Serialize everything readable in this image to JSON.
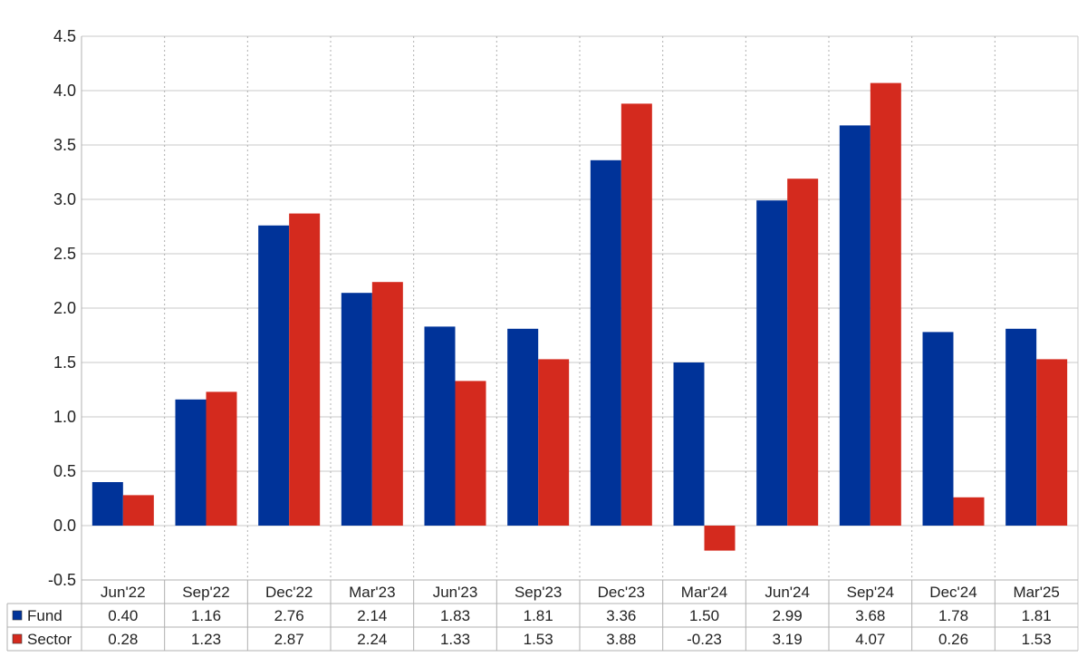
{
  "chart_data": {
    "type": "bar",
    "title": "",
    "xlabel": "",
    "ylabel": "",
    "categories": [
      "Jun'22",
      "Sep'22",
      "Dec'22",
      "Mar'23",
      "Jun'23",
      "Sep'23",
      "Dec'23",
      "Mar'24",
      "Jun'24",
      "Sep'24",
      "Dec'24",
      "Mar'25"
    ],
    "series": [
      {
        "name": "Fund",
        "color": "#003399",
        "values": [
          0.4,
          1.16,
          2.76,
          2.14,
          1.83,
          1.81,
          3.36,
          1.5,
          2.99,
          3.68,
          1.78,
          1.81
        ],
        "labels": [
          "0.40",
          "1.16",
          "2.76",
          "2.14",
          "1.83",
          "1.81",
          "3.36",
          "1.50",
          "2.99",
          "3.68",
          "1.78",
          "1.81"
        ]
      },
      {
        "name": "Sector",
        "color": "#d42a1e",
        "values": [
          0.28,
          1.23,
          2.87,
          2.24,
          1.33,
          1.53,
          3.88,
          -0.23,
          3.19,
          4.07,
          0.26,
          1.53
        ],
        "labels": [
          "0.28",
          "1.23",
          "2.87",
          "2.24",
          "1.33",
          "1.53",
          "3.88",
          "-0.23",
          "3.19",
          "4.07",
          "0.26",
          "1.53"
        ]
      }
    ],
    "ylim": [
      -0.5,
      4.5
    ],
    "yticks": [
      "-0.5",
      "0.0",
      "0.5",
      "1.0",
      "1.5",
      "2.0",
      "2.5",
      "3.0",
      "3.5",
      "4.0",
      "4.5"
    ],
    "negative_color": "#ff0000",
    "grid": true,
    "legend": "data-table-left"
  }
}
